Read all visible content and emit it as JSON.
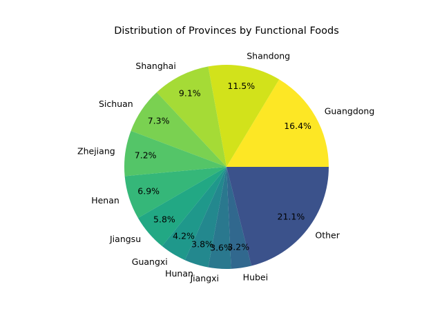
{
  "chart_data": {
    "type": "pie",
    "title": "Distribution of Provinces by Functional Foods",
    "start_angle_deg": 0,
    "direction": "counterclockwise",
    "slices": [
      {
        "label": "Guangdong",
        "value": 16.4,
        "pct_label": "16.4%",
        "color": "#fde725"
      },
      {
        "label": "Shandong",
        "value": 11.5,
        "pct_label": "11.5%",
        "color": "#d2e21b"
      },
      {
        "label": "Shanghai",
        "value": 9.1,
        "pct_label": "9.1%",
        "color": "#a5db36"
      },
      {
        "label": "Sichuan",
        "value": 7.3,
        "pct_label": "7.3%",
        "color": "#7ad151"
      },
      {
        "label": "Zhejiang",
        "value": 7.2,
        "pct_label": "7.2%",
        "color": "#54c568"
      },
      {
        "label": "Henan",
        "value": 6.9,
        "pct_label": "6.9%",
        "color": "#35b779"
      },
      {
        "label": "Jiangsu",
        "value": 5.8,
        "pct_label": "5.8%",
        "color": "#22a884"
      },
      {
        "label": "Guangxi",
        "value": 4.2,
        "pct_label": "4.2%",
        "color": "#1f988b"
      },
      {
        "label": "Hunan",
        "value": 3.8,
        "pct_label": "3.8%",
        "color": "#23888e"
      },
      {
        "label": "Jiangxi",
        "value": 3.6,
        "pct_label": "3.6%",
        "color": "#2a788e"
      },
      {
        "label": "Hubei",
        "value": 3.2,
        "pct_label": "3.2%",
        "color": "#31688e"
      },
      {
        "label": "Other",
        "value": 21.1,
        "pct_label": "21.1%",
        "color": "#3b528b"
      }
    ]
  }
}
